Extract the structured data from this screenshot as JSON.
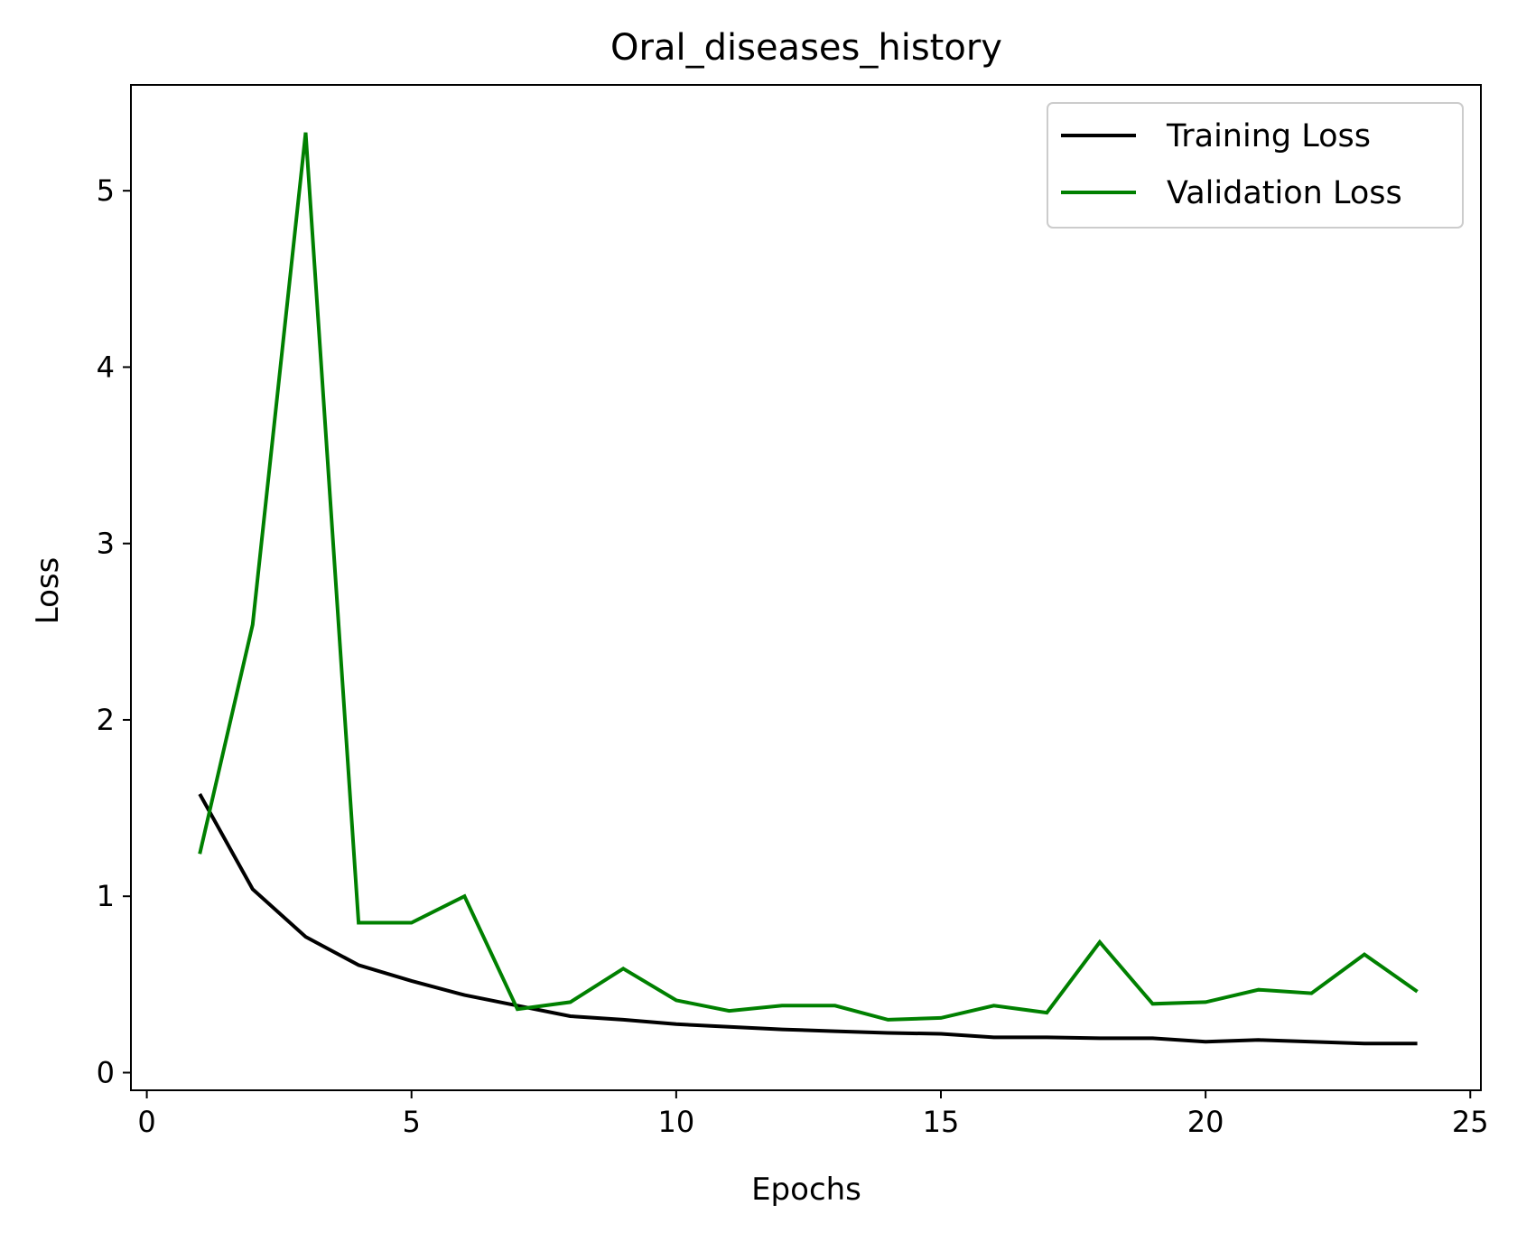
{
  "chart_data": {
    "type": "line",
    "title": "Oral_diseases_history",
    "xlabel": "Epochs",
    "ylabel": "Loss",
    "xlim": [
      -0.3,
      25.2
    ],
    "ylim": [
      -0.1,
      5.6
    ],
    "x_ticks": [
      0,
      5,
      10,
      15,
      20,
      25
    ],
    "y_ticks": [
      0,
      1,
      2,
      3,
      4,
      5
    ],
    "grid": false,
    "legend_position": "top-right",
    "x": [
      1,
      2,
      3,
      4,
      5,
      6,
      7,
      8,
      9,
      10,
      11,
      12,
      13,
      14,
      15,
      16,
      17,
      18,
      19,
      20,
      21,
      22,
      23,
      24
    ],
    "series": [
      {
        "name": "Training Loss",
        "color": "#000000",
        "values": [
          1.58,
          1.04,
          0.77,
          0.61,
          0.52,
          0.44,
          0.38,
          0.32,
          0.3,
          0.275,
          0.26,
          0.245,
          0.235,
          0.225,
          0.22,
          0.2,
          0.2,
          0.195,
          0.195,
          0.175,
          0.185,
          0.175,
          0.165,
          0.165
        ]
      },
      {
        "name": "Validation Loss",
        "color": "#008000",
        "values": [
          1.24,
          2.54,
          5.33,
          0.85,
          0.85,
          1.0,
          0.36,
          0.4,
          0.59,
          0.41,
          0.35,
          0.38,
          0.38,
          0.3,
          0.31,
          0.38,
          0.34,
          0.74,
          0.39,
          0.4,
          0.47,
          0.45,
          0.67,
          0.46
        ]
      }
    ]
  }
}
